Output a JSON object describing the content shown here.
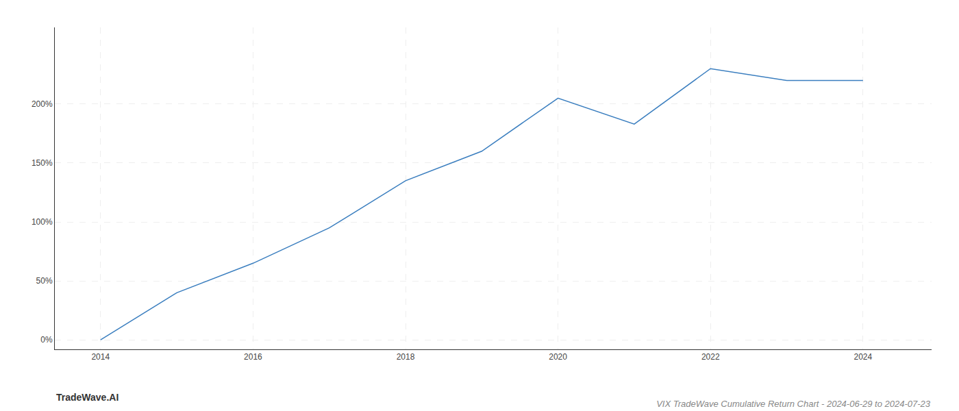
{
  "chart_data": {
    "type": "line",
    "title": "VIX TradeWave Cumulative Return Chart - 2024-06-29 to 2024-07-23",
    "annotations": [
      "TradeWave.AI"
    ],
    "x": [
      2014,
      2015,
      2016,
      2017,
      2018,
      2019,
      2020,
      2021,
      2022,
      2023,
      2024
    ],
    "values": [
      0.0,
      0.4,
      0.65,
      0.95,
      1.35,
      1.6,
      2.05,
      1.83,
      2.3,
      2.2,
      2.2
    ],
    "color": "#3a7ebf",
    "xlim": [
      2013.4,
      2024.9
    ],
    "ylim": [
      -0.08,
      2.65
    ],
    "xticks": [
      2014,
      2016,
      2018,
      2020,
      2022,
      2024
    ],
    "yticks": [
      {
        "value": 0.0,
        "label": "0%"
      },
      {
        "value": 0.5,
        "label": "50%"
      },
      {
        "value": 1.0,
        "label": "100%"
      },
      {
        "value": 1.5,
        "label": "150%"
      },
      {
        "value": 2.0,
        "label": "200%"
      }
    ],
    "grid": true
  }
}
